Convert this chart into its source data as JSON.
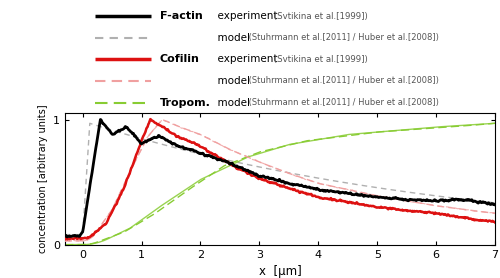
{
  "xlim": [
    -0.3,
    7.0
  ],
  "ylim": [
    0,
    1.05
  ],
  "xlabel": "x  [μm]",
  "ylabel": "concentration [arbitrary units]",
  "xticks": [
    0,
    1,
    2,
    3,
    4,
    5,
    6,
    7
  ],
  "yticks": [
    0,
    1
  ],
  "factin_exp_color": "#000000",
  "factin_model_color": "#b0b0b0",
  "cofilin_exp_color": "#dd1111",
  "cofilin_model_color": "#f0a0a0",
  "tropom_model_color": "#88cc33",
  "fig_width": 5.0,
  "fig_height": 2.78,
  "dpi": 100
}
